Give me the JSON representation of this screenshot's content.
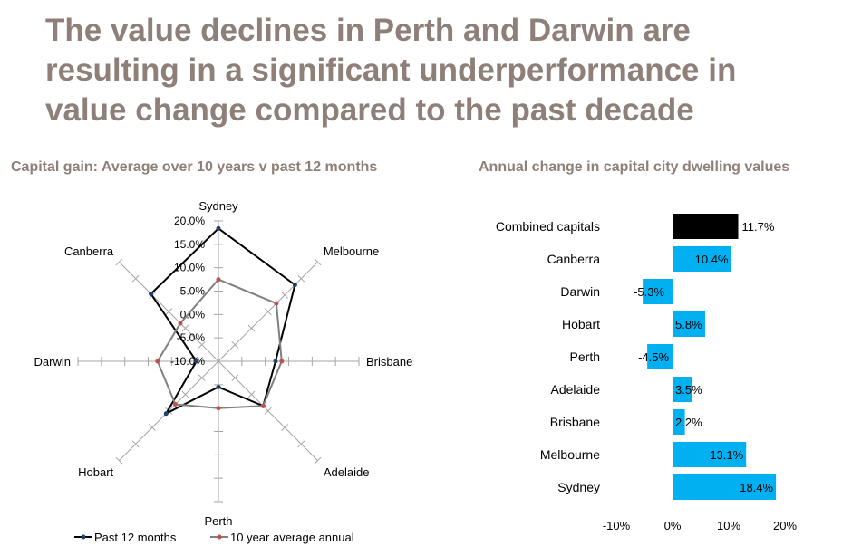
{
  "headline": [
    "The value declines in Perth and Darwin are",
    "resulting in a significant underperformance in",
    "value change compared to the past decade"
  ],
  "colors": {
    "headline": "#8e8079",
    "past12": "#000000",
    "past12_marker": "#1f3f73",
    "tenYear": "#808080",
    "tenYear_marker": "#c0504d",
    "bar_blue": "#00b0f0",
    "bar_combined": "#000000",
    "axis": "#a6a6a6"
  },
  "chart_data": [
    {
      "type": "radar",
      "title": "Capital gain: Average over 10 years v past 12 months",
      "categories": [
        "Sydney",
        "Melbourne",
        "Brisbane",
        "Adelaide",
        "Perth",
        "Hobart",
        "Darwin",
        "Canberra"
      ],
      "radial_ticks": [
        "20.0%",
        "15.0%",
        "10.0%",
        "5.0%",
        "0.0%",
        "-5.0%",
        "-10.0%"
      ],
      "rlim": [
        -10,
        20
      ],
      "series": [
        {
          "name": "Past 12 months",
          "values": [
            18.4,
            13.1,
            2.2,
            3.5,
            -4.5,
            5.8,
            -5.3,
            10.4
          ]
        },
        {
          "name": "10 year average annual",
          "values": [
            7.5,
            7.5,
            3.5,
            3.5,
            0.0,
            3.0,
            3.0,
            1.5
          ]
        }
      ],
      "legend_position": "bottom"
    },
    {
      "type": "bar",
      "orientation": "horizontal",
      "title": "Annual change in capital city dwelling values",
      "categories": [
        "Combined capitals",
        "Canberra",
        "Darwin",
        "Hobart",
        "Perth",
        "Adelaide",
        "Brisbane",
        "Melbourne",
        "Sydney"
      ],
      "values": [
        11.7,
        10.4,
        -5.3,
        5.8,
        -4.5,
        3.5,
        2.2,
        13.1,
        18.4
      ],
      "labels": [
        "11.7%",
        "10.4%",
        "-5.3%",
        "5.8%",
        "-4.5%",
        "3.5%",
        "2.2%",
        "13.1%",
        "18.4%"
      ],
      "xticks": [
        "-10%",
        "0%",
        "10%",
        "20%"
      ],
      "xlim": [
        -10,
        20
      ]
    }
  ]
}
